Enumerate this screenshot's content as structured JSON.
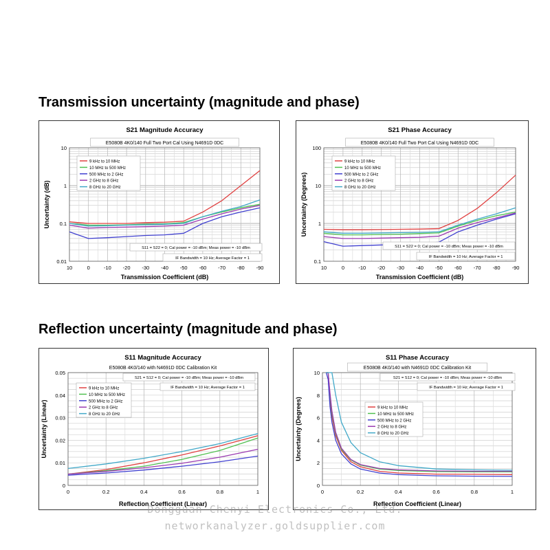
{
  "sections": {
    "transmission_title": "Transmission uncertainty (magnitude and phase)",
    "reflection_title": "Reflection uncertainty (magnitude and phase)"
  },
  "watermark": {
    "line1": "Dongguan Chenyi Electronics Co., Ltd.",
    "line2": "networkanalyzer.goldsupplier.com"
  },
  "colors": {
    "9kHz-10MHz": "#e04040",
    "10MHz-500MHz": "#50c050",
    "500MHz-2GHz": "#4040d0",
    "2GHz-8GHz": "#9a3ab0",
    "8GHz-20GHz": "#40a8c8"
  },
  "chart_data": [
    {
      "id": "s21mag",
      "type": "line",
      "title": "S21 Magnitude Accuracy",
      "subtitle": "E5080B 4K0/140 Full Two Port Cal Using N4691D 0DC",
      "xlabel": "Transmission Coefficient (dB)",
      "ylabel": "Uncertainty (dB)",
      "yscale": "log",
      "xlim": [
        10,
        -90
      ],
      "ylim": [
        0.01,
        10
      ],
      "xticks": [
        10,
        0,
        -10,
        -20,
        -30,
        -40,
        -50,
        -60,
        -70,
        -80,
        -90
      ],
      "xtick_labels": [
        "10",
        "0",
        "-10",
        "-20",
        "-30",
        "-40",
        "-50",
        "-60",
        "-70",
        "-80",
        "-90"
      ],
      "yticks": [
        0.01,
        0.1,
        1,
        10
      ],
      "ytick_labels": [
        "0.01",
        "0.1",
        "1",
        "10"
      ],
      "grid": true,
      "legend_position": "top-left",
      "annotations": [
        "S11 = S22 = 0; Cal power = -10 dBm; Meas power = -10 dBm",
        "IF Bandwidth = 10 Hz; Average Factor = 1"
      ],
      "x": [
        10,
        0,
        -10,
        -20,
        -30,
        -40,
        -50,
        -60,
        -70,
        -80,
        -90
      ],
      "series": [
        {
          "name": "9 kHz to 10 MHz",
          "color_key": "9kHz-10MHz",
          "values": [
            0.11,
            0.1,
            0.1,
            0.1,
            0.105,
            0.108,
            0.115,
            0.2,
            0.4,
            1.0,
            2.5
          ]
        },
        {
          "name": "10 MHz to 500 MHz",
          "color_key": "10MHz-500MHz",
          "values": [
            0.1,
            0.09,
            0.09,
            0.092,
            0.095,
            0.098,
            0.105,
            0.15,
            0.2,
            0.26,
            0.32
          ]
        },
        {
          "name": "500 MHz to 2 GHz",
          "color_key": "500MHz-2GHz",
          "values": [
            0.06,
            0.04,
            0.042,
            0.045,
            0.048,
            0.05,
            0.055,
            0.1,
            0.15,
            0.2,
            0.26
          ]
        },
        {
          "name": "2 GHz to 8 GHz",
          "color_key": "2GHz-8GHz",
          "values": [
            0.09,
            0.075,
            0.078,
            0.08,
            0.082,
            0.085,
            0.09,
            0.13,
            0.18,
            0.24,
            0.3
          ]
        },
        {
          "name": "8 GHz to 20 GHz",
          "color_key": "8GHz-20GHz",
          "values": [
            0.1,
            0.085,
            0.087,
            0.09,
            0.092,
            0.095,
            0.1,
            0.15,
            0.21,
            0.28,
            0.42
          ]
        }
      ]
    },
    {
      "id": "s21phase",
      "type": "line",
      "title": "S21 Phase Accuracy",
      "subtitle": "E5080B 4K0/140 Full Two Port Cal Using N4691D 0DC",
      "xlabel": "Transmission Coefficient (dB)",
      "ylabel": "Uncertainty (Degrees)",
      "yscale": "log",
      "xlim": [
        10,
        -90
      ],
      "ylim": [
        0.1,
        100
      ],
      "xticks": [
        10,
        0,
        -10,
        -20,
        -30,
        -40,
        -50,
        -60,
        -70,
        -80,
        -90
      ],
      "xtick_labels": [
        "10",
        "0",
        "-10",
        "-20",
        "-30",
        "-40",
        "-50",
        "-60",
        "-70",
        "-80",
        "-90"
      ],
      "yticks": [
        0.1,
        1,
        10,
        100
      ],
      "ytick_labels": [
        "0.1",
        "1",
        "10",
        "100"
      ],
      "grid": true,
      "legend_position": "top-left",
      "annotations": [
        "S11 = S22 = 0; Cal power = -10 dBm; Meas power = -10 dBm",
        "IF Bandwidth = 10 Hz; Average Factor = 1"
      ],
      "x": [
        10,
        0,
        -10,
        -20,
        -30,
        -40,
        -50,
        -60,
        -70,
        -80,
        -90
      ],
      "series": [
        {
          "name": "9 kHz to 10 MHz",
          "color_key": "9kHz-10MHz",
          "values": [
            0.7,
            0.68,
            0.68,
            0.69,
            0.7,
            0.71,
            0.73,
            1.2,
            2.5,
            6.5,
            19
          ]
        },
        {
          "name": "10 MHz to 500 MHz",
          "color_key": "10MHz-500MHz",
          "values": [
            0.55,
            0.5,
            0.5,
            0.51,
            0.52,
            0.54,
            0.56,
            0.85,
            1.2,
            1.6,
            2.0
          ]
        },
        {
          "name": "500 MHz to 2 GHz",
          "color_key": "500MHz-2GHz",
          "values": [
            0.33,
            0.25,
            0.26,
            0.27,
            0.28,
            0.29,
            0.32,
            0.6,
            0.9,
            1.3,
            1.8
          ]
        },
        {
          "name": "2 GHz to 8 GHz",
          "color_key": "2GHz-8GHz",
          "values": [
            0.45,
            0.4,
            0.4,
            0.41,
            0.42,
            0.43,
            0.46,
            0.75,
            1.05,
            1.4,
            1.9
          ]
        },
        {
          "name": "8 GHz to 20 GHz",
          "color_key": "8GHz-20GHz",
          "values": [
            0.6,
            0.55,
            0.55,
            0.56,
            0.57,
            0.58,
            0.6,
            0.9,
            1.3,
            1.8,
            2.6
          ]
        }
      ]
    },
    {
      "id": "s11mag",
      "type": "line",
      "title": "S11 Magnitude Accuracy",
      "subtitle": "E5080B 4K0/140 with N4691D 0DC Calibration Kit",
      "xlabel": "Reflection Coefficient (Linear)",
      "ylabel": "Uncertainty (Linear)",
      "yscale": "linear",
      "xlim": [
        0,
        1
      ],
      "ylim": [
        0,
        0.05
      ],
      "xticks": [
        0,
        0.2,
        0.4,
        0.6,
        0.8,
        1
      ],
      "xtick_labels": [
        "0",
        "0.2",
        "0.4",
        "0.6",
        "0.8",
        "1"
      ],
      "yticks": [
        0,
        0.01,
        0.02,
        0.03,
        0.04,
        0.05
      ],
      "ytick_labels": [
        "0",
        "0.01",
        "0.02",
        "0.03",
        "0.04",
        "0.05"
      ],
      "grid": true,
      "legend_position": "top-left",
      "annotations": [
        "S21 = S12 = 0; Cal power = -10 dBm; Meas power = -10 dBm",
        "IF Bandwidth = 10 Hz; Average Factor = 1"
      ],
      "x": [
        0,
        0.2,
        0.4,
        0.6,
        0.8,
        1
      ],
      "series": [
        {
          "name": "9 kHz to 10 MHz",
          "color_key": "9kHz-10MHz",
          "values": [
            0.005,
            0.007,
            0.01,
            0.0135,
            0.0175,
            0.022
          ]
        },
        {
          "name": "10 MHz to 500 MHz",
          "color_key": "10MHz-500MHz",
          "values": [
            0.005,
            0.0065,
            0.0085,
            0.0115,
            0.0155,
            0.021
          ]
        },
        {
          "name": "500 MHz to 2 GHz",
          "color_key": "500MHz-2GHz",
          "values": [
            0.0045,
            0.0055,
            0.0068,
            0.0085,
            0.0105,
            0.013
          ]
        },
        {
          "name": "2 GHz to 8 GHz",
          "color_key": "2GHz-8GHz",
          "values": [
            0.005,
            0.0062,
            0.0078,
            0.0098,
            0.0125,
            0.016
          ]
        },
        {
          "name": "8 GHz to 20 GHz",
          "color_key": "8GHz-20GHz",
          "values": [
            0.0075,
            0.0095,
            0.012,
            0.015,
            0.0185,
            0.023
          ]
        }
      ]
    },
    {
      "id": "s11phase",
      "type": "line",
      "title": "S11 Phase Accuracy",
      "subtitle": "E5080B 4K0/140 with N4691D 0DC Calibration Kit",
      "xlabel": "Reflection Coefficient (Linear)",
      "ylabel": "Uncertainty (Degrees)",
      "yscale": "linear",
      "xlim": [
        0,
        1
      ],
      "ylim": [
        0,
        10
      ],
      "xticks": [
        0,
        0.2,
        0.4,
        0.6,
        0.8,
        1
      ],
      "xtick_labels": [
        "0",
        "0.2",
        "0.4",
        "0.6",
        "0.8",
        "1"
      ],
      "yticks": [
        0,
        2,
        4,
        6,
        8,
        10
      ],
      "ytick_labels": [
        "0",
        "2",
        "4",
        "6",
        "8",
        "10"
      ],
      "grid": true,
      "legend_position": "center-left",
      "annotations": [
        "S21 = S12 = 0; Cal power = -10 dBm; Meas power = -10 dBm",
        "IF Bandwidth = 10 Hz; Average Factor = 1"
      ],
      "x": [
        0.02,
        0.03,
        0.04,
        0.05,
        0.07,
        0.1,
        0.15,
        0.2,
        0.3,
        0.4,
        0.6,
        0.8,
        1
      ],
      "series": [
        {
          "name": "9 kHz to 10 MHz",
          "color_key": "9kHz-10MHz",
          "values": [
            10,
            10,
            7.6,
            6.1,
            4.4,
            3.1,
            2.1,
            1.65,
            1.25,
            1.1,
            1.0,
            0.98,
            0.95
          ]
        },
        {
          "name": "10 MHz to 500 MHz",
          "color_key": "10MHz-500MHz",
          "values": [
            10,
            10,
            8.0,
            6.4,
            4.6,
            3.2,
            2.25,
            1.8,
            1.45,
            1.32,
            1.22,
            1.2,
            1.2
          ]
        },
        {
          "name": "500 MHz to 2 GHz",
          "color_key": "500MHz-2GHz",
          "values": [
            10,
            9.4,
            7.0,
            5.6,
            4.0,
            2.8,
            1.9,
            1.45,
            1.1,
            0.95,
            0.85,
            0.82,
            0.8
          ]
        },
        {
          "name": "2 GHz to 8 GHz",
          "color_key": "2GHz-8GHz",
          "values": [
            10,
            10,
            8.2,
            6.6,
            4.7,
            3.3,
            2.3,
            1.85,
            1.5,
            1.38,
            1.28,
            1.25,
            1.25
          ]
        },
        {
          "name": "8 GHz to 20 GHz",
          "color_key": "8GHz-20GHz",
          "values": [
            10,
            10,
            10,
            10,
            8.0,
            5.6,
            3.8,
            2.9,
            2.1,
            1.75,
            1.45,
            1.38,
            1.35
          ]
        }
      ]
    }
  ]
}
